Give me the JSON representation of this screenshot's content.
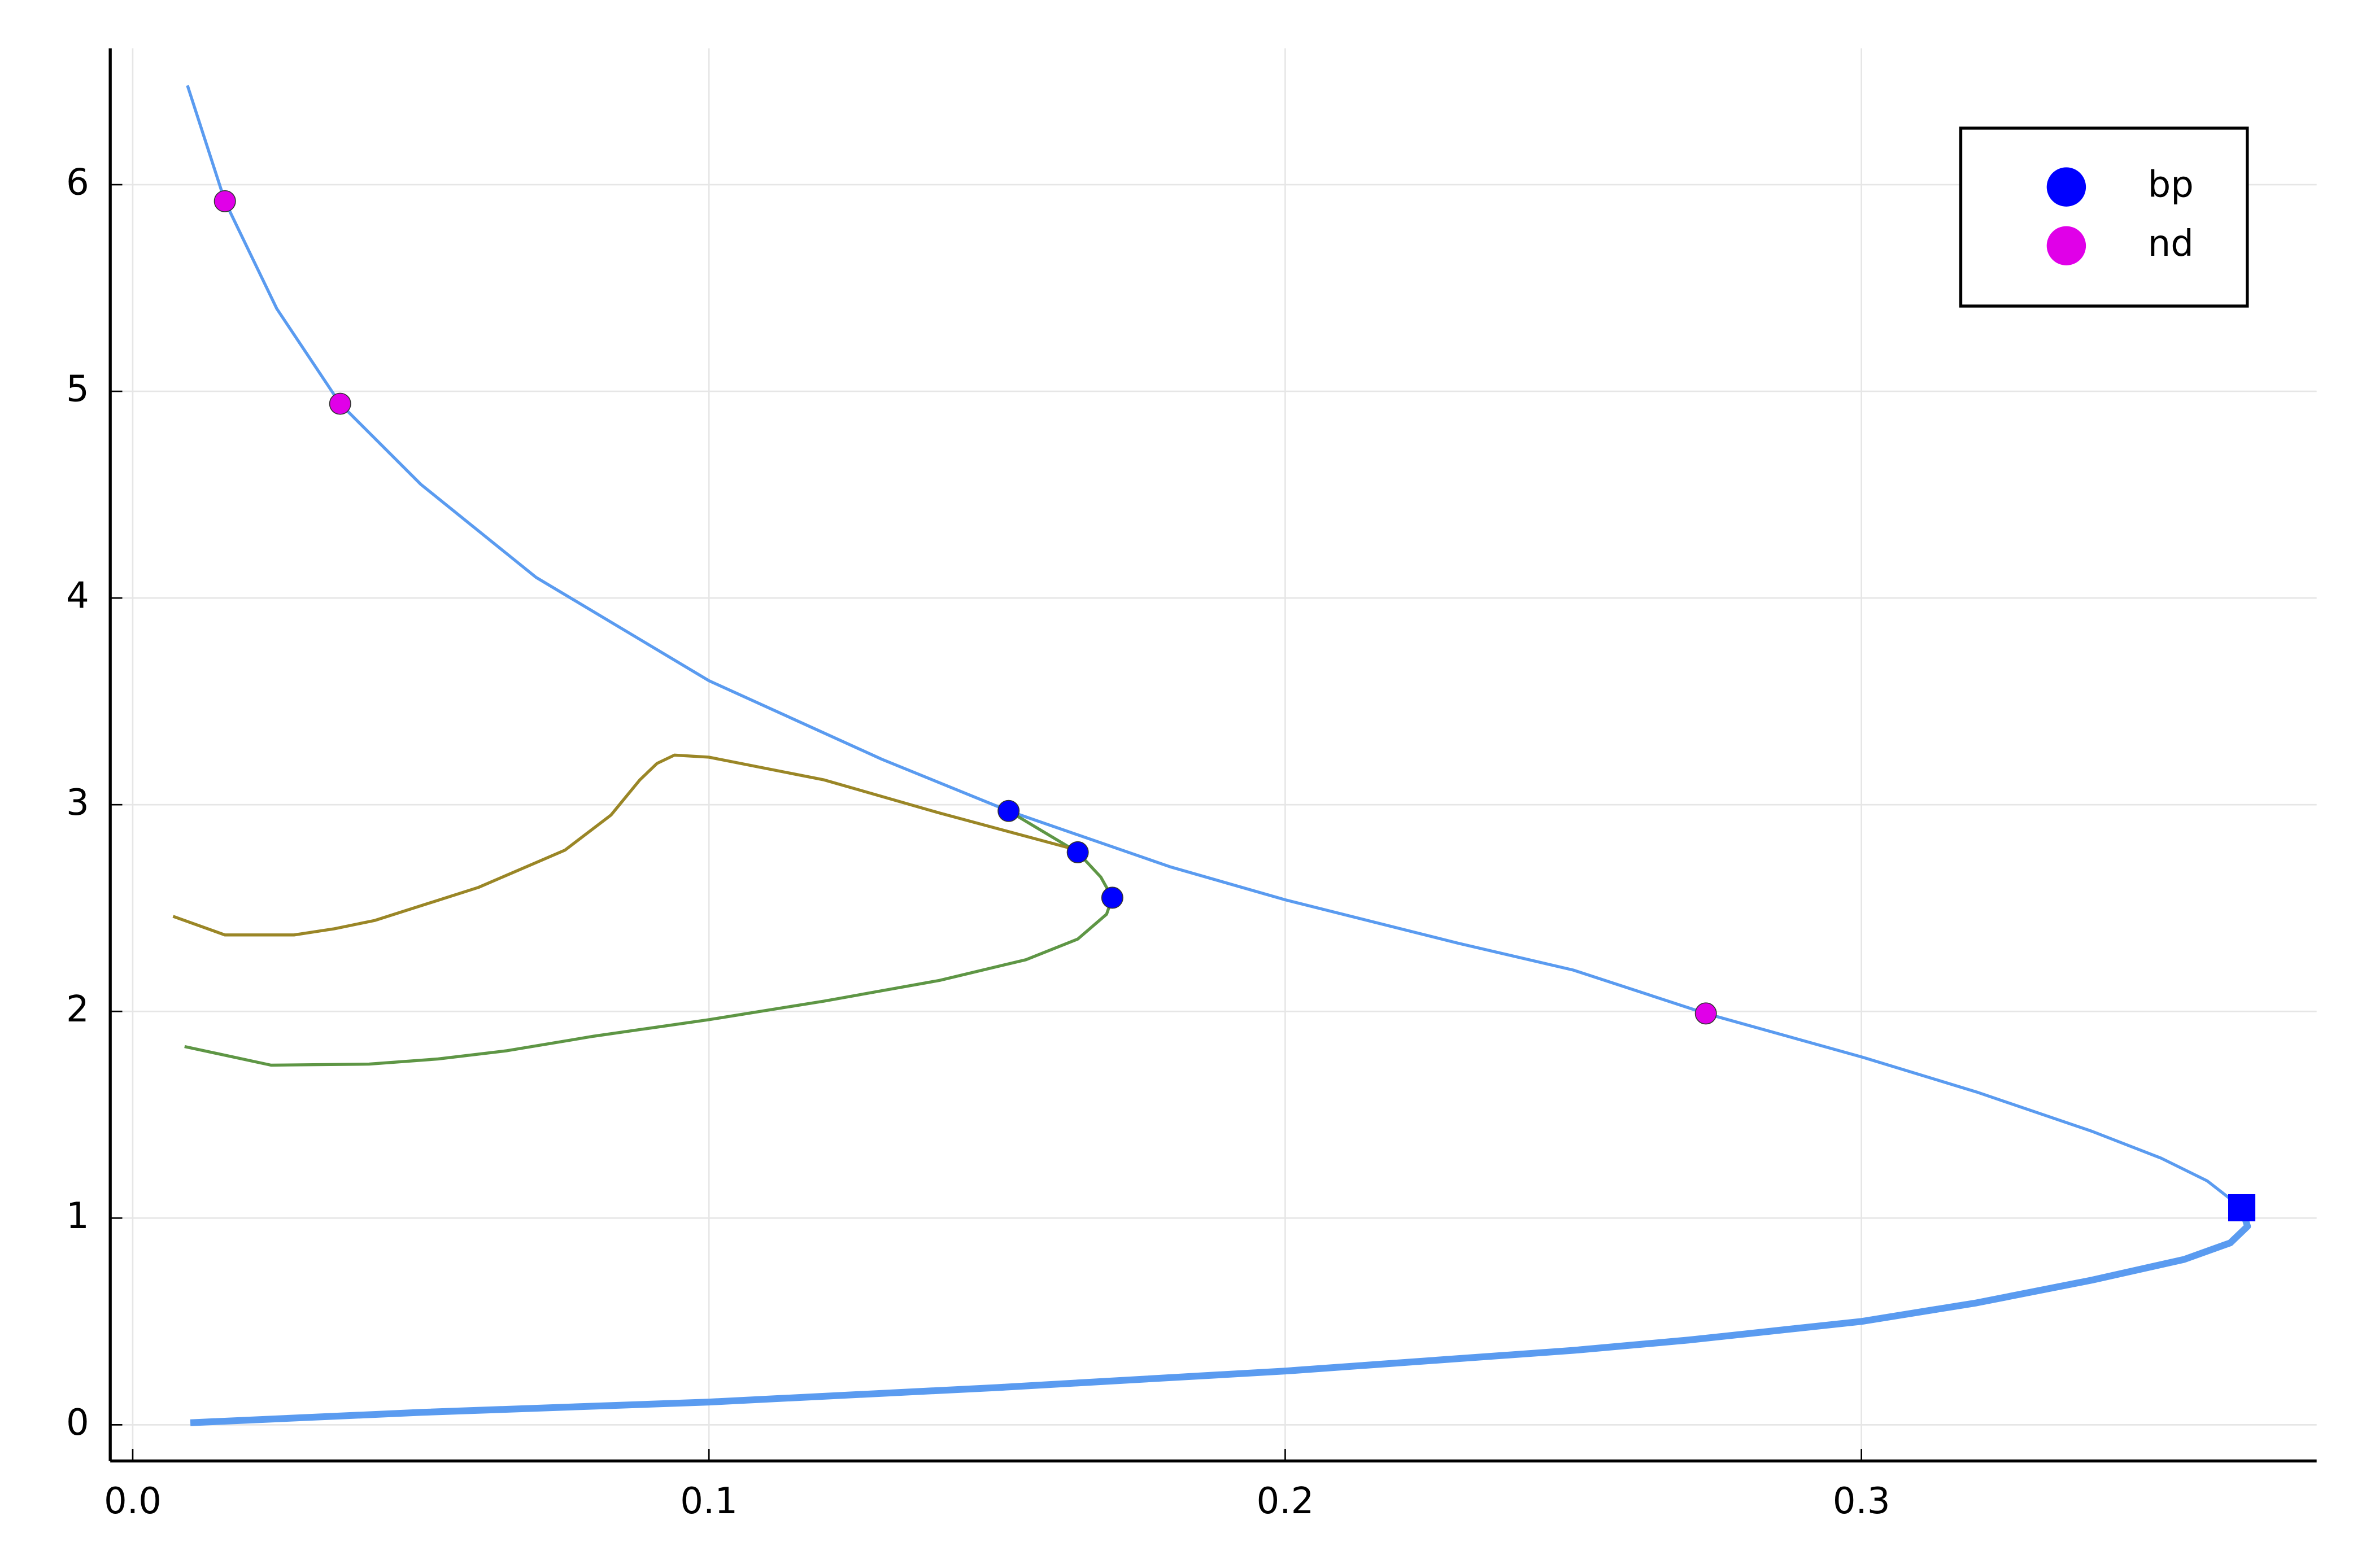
{
  "chart_data": {
    "type": "line",
    "xlim": [
      -0.0039,
      0.379
    ],
    "ylim": [
      -0.175,
      6.66
    ],
    "xticks": [
      {
        "value": 0,
        "label": "0.0"
      },
      0.1,
      0.2,
      0.3
    ],
    "yticks": [
      0,
      1,
      2,
      3,
      4,
      5,
      6
    ],
    "grid": true,
    "legend": "top-right",
    "series": [
      {
        "style": "line",
        "color": "#5a9bf0",
        "x": [
          0.0095,
          0.016,
          0.025,
          0.036,
          0.05,
          0.07,
          0.1,
          0.13,
          0.152,
          0.18,
          0.2,
          0.23,
          0.25,
          0.273,
          0.3,
          0.32,
          0.34,
          0.352,
          0.36,
          0.366
        ],
        "values": [
          6.48,
          5.92,
          5.4,
          4.94,
          4.55,
          4.1,
          3.6,
          3.22,
          2.97,
          2.7,
          2.54,
          2.33,
          2.2,
          1.99,
          1.78,
          1.61,
          1.42,
          1.29,
          1.18,
          1.05
        ]
      },
      {
        "style": "line-thick",
        "color": "#5a9bf0",
        "x": [
          0.366,
          0.367,
          0.364,
          0.356,
          0.34,
          0.32,
          0.3,
          0.27,
          0.25,
          0.2,
          0.15,
          0.1,
          0.05,
          0.01
        ],
        "values": [
          1.05,
          0.96,
          0.88,
          0.8,
          0.7,
          0.59,
          0.5,
          0.41,
          0.36,
          0.26,
          0.18,
          0.11,
          0.06,
          0.01
        ]
      },
      {
        "style": "line",
        "color": "#5e9645",
        "x": [
          0.009,
          0.024,
          0.041,
          0.053,
          0.065,
          0.08,
          0.1,
          0.12,
          0.14,
          0.155,
          0.164,
          0.169,
          0.17,
          0.168,
          0.164,
          0.158,
          0.152
        ],
        "values": [
          1.83,
          1.74,
          1.745,
          1.77,
          1.81,
          1.88,
          1.96,
          2.05,
          2.15,
          2.25,
          2.35,
          2.47,
          2.55,
          2.65,
          2.77,
          2.87,
          2.97
        ]
      },
      {
        "style": "line",
        "color": "#9a8626",
        "x": [
          0.007,
          0.016,
          0.028,
          0.035,
          0.042,
          0.06,
          0.075,
          0.083,
          0.088,
          0.091,
          0.094,
          0.1,
          0.12,
          0.14,
          0.164
        ],
        "values": [
          2.46,
          2.37,
          2.37,
          2.4,
          2.44,
          2.6,
          2.78,
          2.95,
          3.12,
          3.2,
          3.24,
          3.23,
          3.12,
          2.96,
          2.78
        ]
      },
      {
        "style": "marker-square",
        "color": "#0000ff",
        "x": [
          0.366
        ],
        "values": [
          1.05
        ]
      },
      {
        "style": "marker-circle",
        "name": "bp",
        "color": "#0000ff",
        "x": [
          0.152,
          0.164,
          0.17
        ],
        "values": [
          2.97,
          2.77,
          2.55
        ]
      },
      {
        "style": "marker-circle",
        "name": "nd",
        "color": "#e000e8",
        "x": [
          0.016,
          0.036,
          0.273
        ],
        "values": [
          5.92,
          4.94,
          1.99
        ]
      }
    ]
  }
}
